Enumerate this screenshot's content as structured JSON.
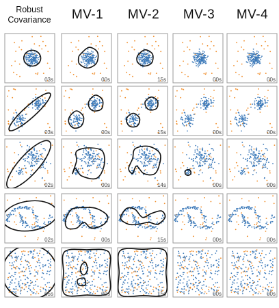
{
  "chart_data": {
    "type": "scatter",
    "title": "",
    "columns": [
      "Robust Covariance",
      "MV-1",
      "MV-2",
      "MV-3",
      "MV-4"
    ],
    "rows": [
      {
        "dataset": "single-blob",
        "times": [
          "03s",
          "00s",
          "15s",
          "00s",
          "00s"
        ]
      },
      {
        "dataset": "two-blobs",
        "times": [
          "03s",
          "00s",
          "15s",
          "00s",
          "00s"
        ]
      },
      {
        "dataset": "unequal-blobs",
        "times": [
          "02s",
          "00s",
          "14s",
          "00s",
          "00s"
        ]
      },
      {
        "dataset": "two-moons",
        "times": [
          "02s",
          "00s",
          "15s",
          "00s",
          "00s"
        ]
      },
      {
        "dataset": "uniform",
        "times": [
          "05s",
          "00s",
          "15s",
          "00s",
          "00s"
        ]
      }
    ],
    "series": [
      {
        "color": "#3a78b8",
        "role": "inliers"
      },
      {
        "color": "#f08a24",
        "role": "outliers"
      }
    ],
    "grid": false,
    "legend": "none"
  },
  "headers": {
    "col0": "Robust\nCovariance",
    "col1": "MV-1",
    "col2": "MV-2",
    "col3": "MV-3",
    "col4": "MV-4"
  },
  "colors": {
    "inlier": "#3a78b8",
    "outlier": "#f08a24",
    "contour": "#111111"
  }
}
